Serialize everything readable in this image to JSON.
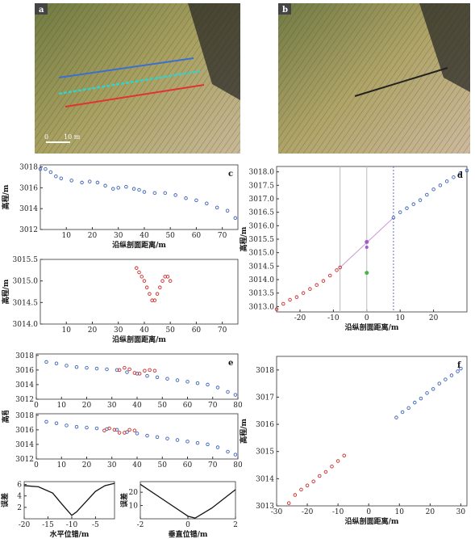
{
  "panels": {
    "a": {
      "label": "a",
      "scale_text": "10 m",
      "scale_zero": "0"
    },
    "b": {
      "label": "b"
    },
    "c": {
      "label": "c"
    },
    "d": {
      "label": "d"
    },
    "e": {
      "label": "e"
    },
    "f": {
      "label": "f"
    }
  },
  "axis_text": {
    "elev": "高程/m",
    "dist": "沿纵剖面距离/m",
    "err": "误差",
    "horiz": "水平位错/m",
    "vert": "垂直位错/m"
  },
  "chart_data": [
    {
      "id": "c1",
      "type": "scatter",
      "x_ticks": [
        10,
        20,
        30,
        40,
        50,
        60,
        70
      ],
      "y_ticks": [
        3012,
        3014,
        3016,
        3018
      ],
      "xlim": [
        0,
        76
      ],
      "ylim": [
        3012,
        3018.2
      ],
      "series": [
        {
          "color": "#3a62b8",
          "points": [
            [
              0,
              3017.8
            ],
            [
              2,
              3017.8
            ],
            [
              4,
              3017.5
            ],
            [
              6,
              3017.1
            ],
            [
              8,
              3016.9
            ],
            [
              12,
              3016.7
            ],
            [
              16,
              3016.5
            ],
            [
              19,
              3016.6
            ],
            [
              22,
              3016.5
            ],
            [
              25,
              3016.2
            ],
            [
              28,
              3015.9
            ],
            [
              30,
              3016.0
            ],
            [
              33,
              3016.1
            ],
            [
              36,
              3015.9
            ],
            [
              38,
              3015.8
            ],
            [
              40,
              3015.6
            ],
            [
              44,
              3015.5
            ],
            [
              48,
              3015.5
            ],
            [
              52,
              3015.3
            ],
            [
              56,
              3015.0
            ],
            [
              60,
              3014.8
            ],
            [
              64,
              3014.5
            ],
            [
              68,
              3014.1
            ],
            [
              72,
              3013.8
            ],
            [
              75,
              3013.1
            ]
          ]
        }
      ]
    },
    {
      "id": "c2",
      "type": "scatter",
      "x_ticks": [
        10,
        20,
        30,
        40,
        50,
        60,
        70
      ],
      "y_ticks": [
        3014.0,
        3014.5,
        3015.0,
        3015.5
      ],
      "xlim": [
        0,
        76
      ],
      "ylim": [
        3014.0,
        3015.5
      ],
      "series": [
        {
          "color": "#cc2b2b",
          "points": [
            [
              37,
              3015.3
            ],
            [
              38,
              3015.2
            ],
            [
              39,
              3015.1
            ],
            [
              40,
              3015.0
            ],
            [
              41,
              3014.85
            ],
            [
              42,
              3014.7
            ],
            [
              43,
              3014.55
            ],
            [
              44,
              3014.55
            ],
            [
              45,
              3014.7
            ],
            [
              46,
              3014.85
            ],
            [
              47,
              3015.0
            ],
            [
              48,
              3015.1
            ],
            [
              49,
              3015.1
            ],
            [
              50,
              3015.0
            ]
          ]
        }
      ]
    },
    {
      "id": "d",
      "type": "scatter",
      "x_ticks": [
        -20,
        -10,
        0,
        10,
        20
      ],
      "y_ticks": [
        3013.0,
        3013.5,
        3014.0,
        3014.5,
        3015.0,
        3015.5,
        3016.0,
        3016.5,
        3017.0,
        3017.5,
        3018.0
      ],
      "xlim": [
        -27,
        30
      ],
      "ylim": [
        3012.8,
        3018.2
      ],
      "series": [
        {
          "color": "#cc2b2b",
          "points": [
            [
              -27,
              3012.9
            ],
            [
              -25,
              3013.1
            ],
            [
              -23,
              3013.25
            ],
            [
              -21,
              3013.35
            ],
            [
              -19,
              3013.5
            ],
            [
              -17,
              3013.65
            ],
            [
              -15,
              3013.8
            ],
            [
              -13,
              3013.95
            ],
            [
              -11,
              3014.15
            ],
            [
              -9,
              3014.35
            ],
            [
              -8,
              3014.45
            ]
          ]
        },
        {
          "color": "#3a62b8",
          "points": [
            [
              8,
              3016.3
            ],
            [
              10,
              3016.5
            ],
            [
              12,
              3016.65
            ],
            [
              14,
              3016.8
            ],
            [
              16,
              3016.95
            ],
            [
              18,
              3017.15
            ],
            [
              20,
              3017.35
            ],
            [
              22,
              3017.5
            ],
            [
              24,
              3017.65
            ],
            [
              26,
              3017.8
            ],
            [
              28,
              3017.95
            ],
            [
              30,
              3018.05
            ]
          ]
        }
      ]
    },
    {
      "id": "e1",
      "type": "scatter",
      "x_ticks": [
        0,
        10,
        20,
        30,
        40,
        50,
        60,
        70,
        80
      ],
      "y_ticks": [
        3012,
        3014,
        3016,
        3018
      ],
      "xlim": [
        0,
        80
      ],
      "ylim": [
        3012,
        3018.2
      ],
      "series": [
        {
          "color": "#3a62b8",
          "points": [
            [
              4,
              3017.1
            ],
            [
              8,
              3016.9
            ],
            [
              12,
              3016.6
            ],
            [
              16,
              3016.4
            ],
            [
              20,
              3016.3
            ],
            [
              24,
              3016.2
            ],
            [
              28,
              3016.1
            ],
            [
              32,
              3016.0
            ],
            [
              36,
              3015.7
            ],
            [
              40,
              3015.5
            ],
            [
              44,
              3015.2
            ],
            [
              48,
              3015.0
            ],
            [
              52,
              3014.8
            ],
            [
              56,
              3014.6
            ],
            [
              60,
              3014.4
            ],
            [
              64,
              3014.2
            ],
            [
              68,
              3014.0
            ],
            [
              72,
              3013.6
            ],
            [
              76,
              3013.0
            ],
            [
              79,
              3012.6
            ]
          ]
        },
        {
          "color": "#cc2b2b",
          "points": [
            [
              33,
              3016.0
            ],
            [
              35,
              3016.3
            ],
            [
              37,
              3016.1
            ],
            [
              39,
              3015.6
            ],
            [
              41,
              3015.5
            ],
            [
              43,
              3015.9
            ],
            [
              45,
              3016.0
            ],
            [
              47,
              3015.9
            ]
          ]
        }
      ]
    },
    {
      "id": "e2",
      "type": "scatter",
      "x_ticks": [
        0,
        10,
        20,
        30,
        40,
        50,
        60,
        70,
        80
      ],
      "y_ticks": [
        3012,
        3014,
        3016,
        3018
      ],
      "xlim": [
        0,
        80
      ],
      "ylim": [
        3012,
        3018.2
      ],
      "series": [
        {
          "color": "#3a62b8",
          "points": [
            [
              4,
              3017.1
            ],
            [
              8,
              3016.9
            ],
            [
              12,
              3016.6
            ],
            [
              16,
              3016.4
            ],
            [
              20,
              3016.3
            ],
            [
              24,
              3016.2
            ],
            [
              28,
              3016.1
            ],
            [
              32,
              3016.0
            ],
            [
              36,
              3015.7
            ],
            [
              40,
              3015.5
            ],
            [
              44,
              3015.2
            ],
            [
              48,
              3015.0
            ],
            [
              52,
              3014.8
            ],
            [
              56,
              3014.6
            ],
            [
              60,
              3014.4
            ],
            [
              64,
              3014.2
            ],
            [
              68,
              3014.0
            ],
            [
              72,
              3013.6
            ],
            [
              76,
              3013.0
            ],
            [
              79,
              3012.6
            ]
          ]
        },
        {
          "color": "#cc2b2b",
          "points": [
            [
              27,
              3015.9
            ],
            [
              29,
              3016.2
            ],
            [
              31,
              3016.0
            ],
            [
              33,
              3015.6
            ],
            [
              35,
              3015.6
            ],
            [
              37,
              3016.0
            ],
            [
              39,
              3015.9
            ]
          ]
        }
      ]
    },
    {
      "id": "e3",
      "type": "line",
      "x_ticks": [
        -20,
        -15,
        -10,
        -5
      ],
      "y_ticks": [
        2,
        4,
        6
      ],
      "xlim": [
        -20,
        -1
      ],
      "ylim": [
        0,
        6.5
      ],
      "series": [
        {
          "color": "#111111",
          "points": [
            [
              -20,
              5.8
            ],
            [
              -17,
              5.6
            ],
            [
              -14,
              4.5
            ],
            [
              -12,
              2.5
            ],
            [
              -10,
              0.6
            ],
            [
              -9,
              1.2
            ],
            [
              -7,
              3.0
            ],
            [
              -5,
              4.8
            ],
            [
              -3,
              5.8
            ],
            [
              -1,
              6.2
            ]
          ]
        }
      ]
    },
    {
      "id": "e4",
      "type": "line",
      "x_ticks": [
        -2,
        0,
        2
      ],
      "y_ticks": [
        10,
        20
      ],
      "xlim": [
        -2,
        2
      ],
      "ylim": [
        0,
        28
      ],
      "series": [
        {
          "color": "#111111",
          "points": [
            [
              -2,
              26
            ],
            [
              -1,
              14
            ],
            [
              0,
              2
            ],
            [
              0.3,
              0.5
            ],
            [
              1,
              8
            ],
            [
              2,
              22
            ]
          ]
        }
      ]
    },
    {
      "id": "f",
      "type": "scatter",
      "x_ticks": [
        -30,
        -20,
        -10,
        0,
        10,
        20,
        30
      ],
      "y_ticks": [
        3013,
        3014,
        3015,
        3016,
        3017,
        3018
      ],
      "xlim": [
        -30,
        32
      ],
      "ylim": [
        3013,
        3018.5
      ],
      "series": [
        {
          "color": "#cc2b2b",
          "points": [
            [
              -26,
              3013.1
            ],
            [
              -24,
              3013.4
            ],
            [
              -22,
              3013.6
            ],
            [
              -20,
              3013.75
            ],
            [
              -18,
              3013.9
            ],
            [
              -16,
              3014.1
            ],
            [
              -14,
              3014.25
            ],
            [
              -12,
              3014.45
            ],
            [
              -10,
              3014.65
            ],
            [
              -8,
              3014.85
            ]
          ]
        },
        {
          "color": "#3a62b8",
          "points": [
            [
              9,
              3016.25
            ],
            [
              11,
              3016.45
            ],
            [
              13,
              3016.6
            ],
            [
              15,
              3016.8
            ],
            [
              17,
              3016.95
            ],
            [
              19,
              3017.15
            ],
            [
              21,
              3017.3
            ],
            [
              23,
              3017.5
            ],
            [
              25,
              3017.65
            ],
            [
              27,
              3017.8
            ],
            [
              29,
              3017.95
            ],
            [
              30,
              3018.05
            ]
          ]
        }
      ]
    }
  ]
}
